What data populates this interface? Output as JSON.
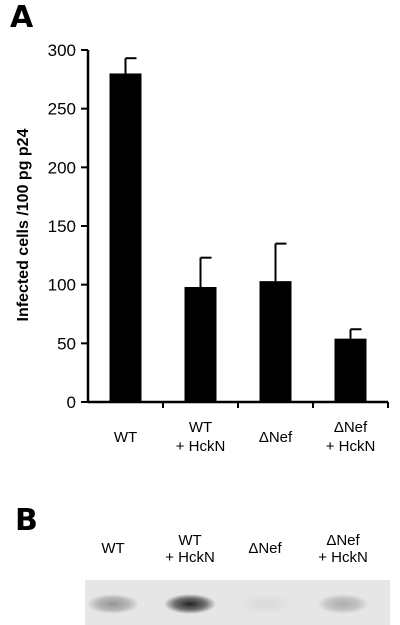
{
  "figure": {
    "panel_a_label": "A",
    "panel_b_label": "B"
  },
  "chart_data": {
    "type": "bar",
    "title": "",
    "xlabel": "",
    "ylabel": "Infected cells /100 pg p24",
    "ylim": [
      0,
      300
    ],
    "yticks": [
      0,
      50,
      100,
      150,
      200,
      250,
      300
    ],
    "grid": false,
    "categories": [
      [
        "WT"
      ],
      [
        "WT",
        "+ HckN"
      ],
      [
        "ΔNef"
      ],
      [
        "ΔNef",
        "+ HckN"
      ]
    ],
    "values": [
      280,
      98,
      103,
      54
    ],
    "errors": [
      13,
      25,
      32,
      8
    ],
    "bar_color": "#000000"
  },
  "blot": {
    "lanes": [
      [
        "WT"
      ],
      [
        "WT",
        "+ HckN"
      ],
      [
        "ΔNef"
      ],
      [
        "ΔNef",
        "+ HckN"
      ]
    ],
    "band_intensity": [
      0.35,
      0.85,
      0.05,
      0.25
    ]
  }
}
